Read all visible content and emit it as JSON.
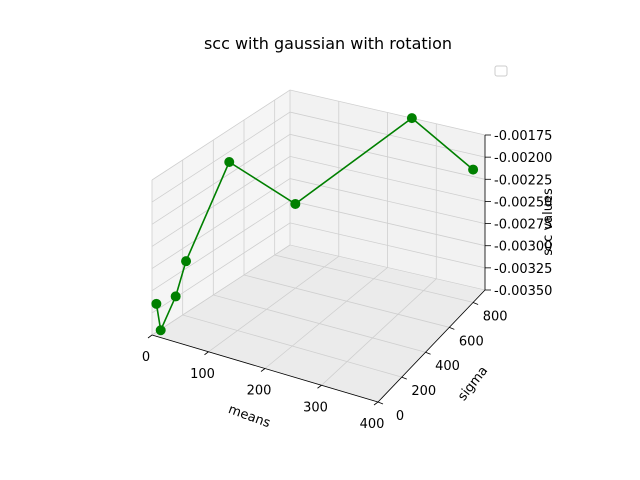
{
  "chart_data": {
    "type": "line3d",
    "title": "scc with gaussian with rotation",
    "xlabel": "means",
    "ylabel": "sigma",
    "zlabel": "scc values",
    "xlim": [
      0,
      400
    ],
    "ylim": [
      0,
      900
    ],
    "zlim": [
      -0.0035,
      -0.00175
    ],
    "x_ticks": [
      "0",
      "100",
      "200",
      "300",
      "400"
    ],
    "y_ticks": [
      "0",
      "200",
      "400",
      "600",
      "800"
    ],
    "z_ticks": [
      "-0.00175",
      "-0.00200",
      "-0.00225",
      "-0.00250",
      "-0.00275",
      "-0.00300",
      "-0.00325",
      "-0.00350"
    ],
    "series": [
      {
        "color": "#008000",
        "marker": "o",
        "points": [
          {
            "x": 5,
            "y": 10,
            "z": -0.00315
          },
          {
            "x": 10,
            "y": 20,
            "z": -0.00345
          },
          {
            "x": 15,
            "y": 100,
            "z": -0.00315
          },
          {
            "x": 20,
            "y": 150,
            "z": -0.0028
          },
          {
            "x": 30,
            "y": 400,
            "z": -0.00195
          },
          {
            "x": 100,
            "y": 600,
            "z": -0.00255
          },
          {
            "x": 250,
            "y": 900,
            "z": -0.00175
          },
          {
            "x": 400,
            "y": 800,
            "z": -0.002
          }
        ]
      }
    ],
    "legend": {
      "location": "upper-right",
      "entries": []
    },
    "grid": true
  }
}
